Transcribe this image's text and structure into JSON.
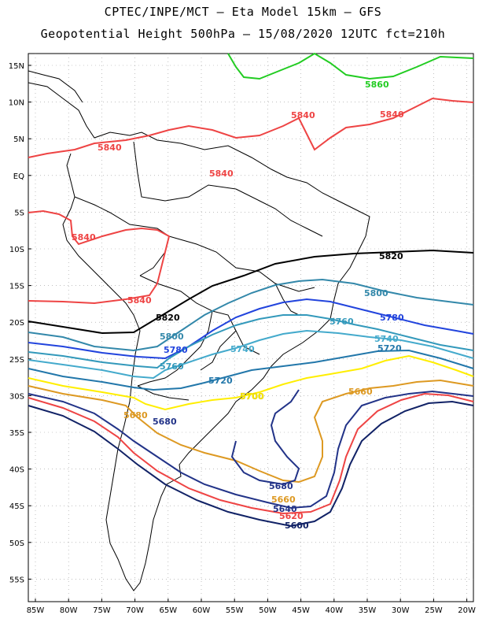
{
  "header": {
    "title_line1": "CPTEC/INPE/MCT –  Eta Model 15km – GFS",
    "title_line2": "Geopotential Height 500hPa – 15/08/2020 12UTC fct=210h"
  },
  "map": {
    "lat_labels": [
      "15N",
      "10N",
      "5N",
      "EQ",
      "5S",
      "10S",
      "15S",
      "20S",
      "25S",
      "30S",
      "35S",
      "40S",
      "45S",
      "50S",
      "55S"
    ],
    "lon_labels": [
      "85W",
      "80W",
      "75W",
      "70W",
      "65W",
      "60W",
      "55W",
      "50W",
      "45W",
      "40W",
      "35W",
      "30W",
      "25W",
      "20W"
    ]
  },
  "contours": [
    {
      "value": "5860",
      "color": "#22cc22"
    },
    {
      "value": "5840",
      "color": "#ee4444"
    },
    {
      "value": "5820",
      "color": "#000000"
    },
    {
      "value": "5800",
      "color": "#3388aa"
    },
    {
      "value": "5780",
      "color": "#2244dd"
    },
    {
      "value": "5760",
      "color": "#3399bb"
    },
    {
      "value": "5740",
      "color": "#44aacc"
    },
    {
      "value": "5720",
      "color": "#2277aa"
    },
    {
      "value": "5700",
      "color": "#ffee00"
    },
    {
      "value": "5680",
      "color": "#dd9922"
    },
    {
      "value": "5660",
      "color": "#dd9922"
    },
    {
      "value": "5640",
      "color": "#223388"
    },
    {
      "value": "5620",
      "color": "#ee4444"
    },
    {
      "value": "5600",
      "color": "#112266"
    }
  ],
  "labels": {
    "l5860": "5860",
    "l5840a": "5840",
    "l5840b": "5840",
    "l5840c": "5840",
    "l5840d": "5840",
    "l5840e": "5840",
    "l5840f": "5840",
    "l5820a": "5820",
    "l5820b": "5820",
    "l5800a": "5800",
    "l5800b": "5800",
    "l5780a": "5780",
    "l5780b": "5780",
    "l5760a": "5760",
    "l5760b": "5760",
    "l5740a": "5740",
    "l5740b": "5740",
    "l5720a": "5720",
    "l5720b": "5720",
    "l5700": "5700",
    "l5680": "5680",
    "l5680b": "5680",
    "l5660": "5660",
    "l5660b": "5660",
    "l5640": "5640",
    "l5620": "5620",
    "l5600": "5600"
  }
}
